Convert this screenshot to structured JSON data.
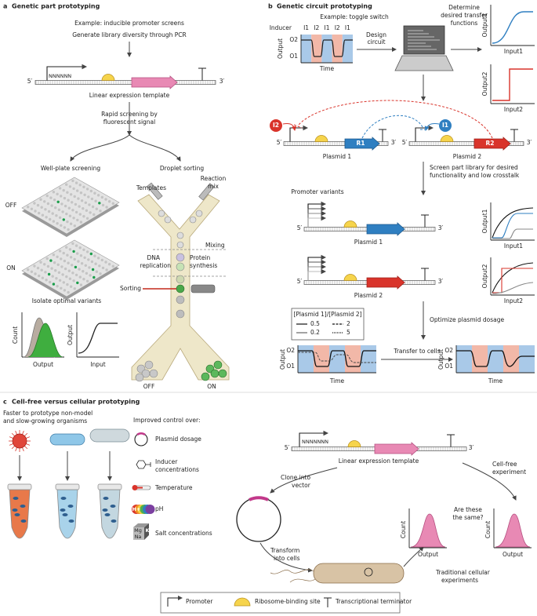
{
  "panel_a": {
    "label": "a",
    "title": "Genetic part prototyping",
    "example": "Example: inducible promoter screens",
    "step1": "Generate library diversity through PCR",
    "template": {
      "randomized": "NNNNNN",
      "end5": "5′",
      "end3": "3′",
      "caption": "Linear expression template"
    },
    "screen": [
      "Rapid screening by",
      "fluorescent signal"
    ],
    "well_plate": {
      "title": "Well-plate screening",
      "off": "OFF",
      "on": "ON"
    },
    "isolate": "Isolate optimal variants",
    "hist": {
      "y": "Count",
      "x": "Output"
    },
    "response": {
      "y": "Output",
      "x": "Input"
    },
    "droplet": {
      "title": "Droplet sorting",
      "templates": "Templates",
      "reaction_mix": [
        "Reaction",
        "mix"
      ],
      "mixing": "Mixing",
      "dna_replication": [
        "DNA",
        "replication"
      ],
      "protein_synthesis": [
        "Protein",
        "synthesis"
      ],
      "sorting": "Sorting",
      "off": "OFF",
      "on": "ON"
    }
  },
  "panel_b": {
    "label": "b",
    "title": "Genetic circuit prototyping",
    "example": "Example: toggle switch",
    "input_plot": {
      "inducer": "Inducer",
      "pulses": [
        "I1",
        "I2",
        "I1",
        "I2",
        "I1"
      ],
      "high": "O2",
      "low": "O1",
      "y": "Output",
      "x": "Time"
    },
    "design": [
      "Design",
      "circuit"
    ],
    "determine": [
      "Determine",
      "desired transfer",
      "functions"
    ],
    "transfer1": {
      "y": "Output1",
      "x": "Input1"
    },
    "transfer2": {
      "y": "Output2",
      "x": "Input2"
    },
    "circuit": {
      "inducer2": "I2",
      "inducer1": "I1",
      "end5a": "5′",
      "end3a": "3′",
      "repressor1": "R1",
      "plasmid1": "Plasmid 1",
      "end5b": "5′",
      "end3b": "3′",
      "repressor2": "R2",
      "plasmid2": "Plasmid 2"
    },
    "screen": [
      "Screen part library for desired",
      "functionality and low crosstalk"
    ],
    "promoter_variants": "Promoter variants",
    "variant1": {
      "end5": "5′",
      "end3": "3′",
      "caption": "Plasmid 1",
      "y": "Output1",
      "x": "Input1"
    },
    "variant2": {
      "end5": "5′",
      "end3": "3′",
      "caption": "Plasmid 2",
      "y": "Output2",
      "x": "Input2"
    },
    "ratio_legend": {
      "title": "[Plasmid 1]/[Plasmid 2]",
      "entries": [
        0.5,
        2,
        0.2,
        5
      ]
    },
    "optimize": "Optimize plasmid dosage",
    "before": {
      "high": "O2",
      "low": "O1",
      "y": "Output",
      "x": "Time"
    },
    "transfer": "Transfer to cells",
    "after": {
      "high": "O2",
      "low": "O1",
      "y": "Output",
      "x": "Time"
    }
  },
  "panel_c": {
    "label": "c",
    "title": "Cell-free versus cellular prototyping",
    "organisms": [
      "Faster to prototype non-model",
      "and slow-growing organisms"
    ],
    "control": {
      "title": "Improved control over:",
      "plasmid": "Plasmid dosage",
      "inducer": [
        "Inducer",
        "concentrations"
      ],
      "temperature": "Temperature",
      "ph": {
        "label": "pH",
        "ion": "H+"
      },
      "salt": {
        "label": "Salt concentrations",
        "ions": [
          "Mg",
          "K",
          "Na"
        ]
      }
    },
    "template": {
      "randomized": "NNNNNNN",
      "end5": "5′",
      "end3": "3′",
      "caption": "Linear expression template"
    },
    "clone": [
      "Clone into",
      "vector"
    ],
    "cell_free": [
      "Cell-free",
      "experiment"
    ],
    "hist_free": {
      "y": "Count",
      "x": "Output"
    },
    "question": [
      "Are these",
      "the same?"
    ],
    "hist_cell": {
      "y": "Count",
      "x": "Output"
    },
    "transform": [
      "Transform",
      "into cells"
    ],
    "traditional": [
      "Traditional cellular",
      "experiments"
    ],
    "legend": {
      "promoter": "Promoter",
      "rbs": "Ribosome-binding site",
      "terminator": "Transcriptional terminator"
    }
  }
}
